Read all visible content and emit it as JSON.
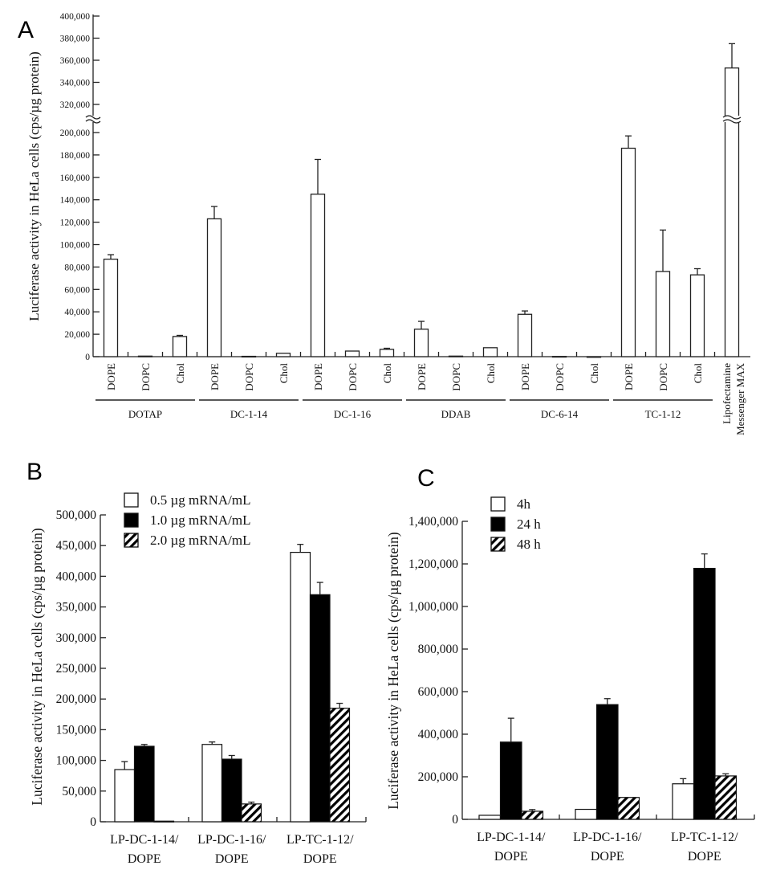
{
  "chart_data": [
    {
      "panel": "A",
      "type": "bar",
      "ylabel": "Luciferase activity in HeLa cells (cps/µg protein)",
      "ylim": [
        0,
        400000
      ],
      "axis_break": [
        200000,
        320000
      ],
      "yticks": [
        "0",
        "20,000",
        "40,000",
        "60,000",
        "80,000",
        "100,000",
        "120,000",
        "140,000",
        "160,000",
        "180,000",
        "200,000",
        "320,000",
        "340,000",
        "360,000",
        "380,000",
        "400,000"
      ],
      "ytick_values": [
        0,
        20000,
        40000,
        60000,
        80000,
        100000,
        120000,
        140000,
        160000,
        180000,
        200000,
        320000,
        340000,
        360000,
        380000,
        400000
      ],
      "groups": [
        {
          "name": "DOTAP",
          "bars": [
            {
              "label": "DOPE",
              "value": 87000,
              "error": 4000
            },
            {
              "label": "DOPC",
              "value": 500,
              "error": 0
            },
            {
              "label": "Chol",
              "value": 18000,
              "error": 1000
            }
          ]
        },
        {
          "name": "DC-1-14",
          "bars": [
            {
              "label": "DOPE",
              "value": 123000,
              "error": 11000
            },
            {
              "label": "DOPC",
              "value": 300,
              "error": 0
            },
            {
              "label": "Chol",
              "value": 3000,
              "error": 0
            }
          ]
        },
        {
          "name": "DC-1-16",
          "bars": [
            {
              "label": "DOPE",
              "value": 145000,
              "error": 31000
            },
            {
              "label": "DOPC",
              "value": 5000,
              "error": 500
            },
            {
              "label": "Chol",
              "value": 6500,
              "error": 1000
            }
          ]
        },
        {
          "name": "DDAB",
          "bars": [
            {
              "label": "DOPE",
              "value": 24500,
              "error": 7000
            },
            {
              "label": "DOPC",
              "value": 500,
              "error": 0
            },
            {
              "label": "Chol",
              "value": 8000,
              "error": 0
            }
          ]
        },
        {
          "name": "DC-6-14",
          "bars": [
            {
              "label": "DOPE",
              "value": 37800,
              "error": 3000
            },
            {
              "label": "DOPC",
              "value": 200,
              "error": 0
            },
            {
              "label": "Chol",
              "value": 0,
              "error": 0
            }
          ]
        },
        {
          "name": "TC-1-12",
          "bars": [
            {
              "label": "DOPE",
              "value": 186000,
              "error": 11000
            },
            {
              "label": "DOPC",
              "value": 76000,
              "error": 37000
            },
            {
              "label": "Chol",
              "value": 73000,
              "error": 5500
            }
          ]
        }
      ],
      "control": {
        "label_lines": [
          "Lipofectamine",
          "Messenger MAX"
        ],
        "value": 353000,
        "error": 22000
      }
    },
    {
      "panel": "B",
      "type": "bar",
      "ylabel": "Luciferase activity  in HeLa cells  (cps/µg protein)",
      "ylim": [
        0,
        500000
      ],
      "yticks": [
        "0",
        "50,000",
        "100,000",
        "150,000",
        "200,000",
        "250,000",
        "300,000",
        "350,000",
        "400,000",
        "450,000",
        "500,000"
      ],
      "ytick_values": [
        0,
        50000,
        100000,
        150000,
        200000,
        250000,
        300000,
        350000,
        400000,
        450000,
        500000
      ],
      "categories": [
        [
          "LP-DC-1-14/",
          "DOPE"
        ],
        [
          "LP-DC-1-16/",
          "DOPE"
        ],
        [
          "LP-TC-1-12/",
          "DOPE"
        ]
      ],
      "legend_position": "top-left",
      "series": [
        {
          "name": "0.5 µg mRNA/mL",
          "fill": "white",
          "values": [
            85000,
            126000,
            439000
          ],
          "errors": [
            13000,
            4000,
            13000
          ]
        },
        {
          "name": "1.0 µg mRNA/mL",
          "fill": "black",
          "values": [
            123000,
            102000,
            370000
          ],
          "errors": [
            3000,
            6000,
            20000
          ]
        },
        {
          "name": "2.0 µg mRNA/mL",
          "fill": "hatched",
          "values": [
            1000,
            29000,
            185000
          ],
          "errors": [
            0,
            3000,
            8000
          ]
        }
      ]
    },
    {
      "panel": "C",
      "type": "bar",
      "ylabel": "Luciferase activity  in HeLa cells  (cps/µg protein)",
      "ylim": [
        0,
        1400000
      ],
      "yticks": [
        "0",
        "200,000",
        "400,000",
        "600,000",
        "800,000",
        "1,000,000",
        "1,200,000",
        "1,400,000"
      ],
      "ytick_values": [
        0,
        200000,
        400000,
        600000,
        800000,
        1000000,
        1200000,
        1400000
      ],
      "categories": [
        [
          "LP-DC-1-14/",
          "DOPE"
        ],
        [
          "LP-DC-1-16/",
          "DOPE"
        ],
        [
          "LP-TC-1-12/",
          "DOPE"
        ]
      ],
      "legend_position": "top-left",
      "series": [
        {
          "name": "4h",
          "fill": "white",
          "values": [
            19000,
            47000,
            167000
          ],
          "errors": [
            3000,
            3000,
            24000
          ]
        },
        {
          "name": "24 h",
          "fill": "black",
          "values": [
            363000,
            539000,
            1179000
          ],
          "errors": [
            112000,
            28000,
            68000
          ]
        },
        {
          "name": "48 h",
          "fill": "hatched",
          "values": [
            38000,
            103000,
            204000
          ],
          "errors": [
            8000,
            3000,
            10000
          ]
        }
      ]
    }
  ]
}
